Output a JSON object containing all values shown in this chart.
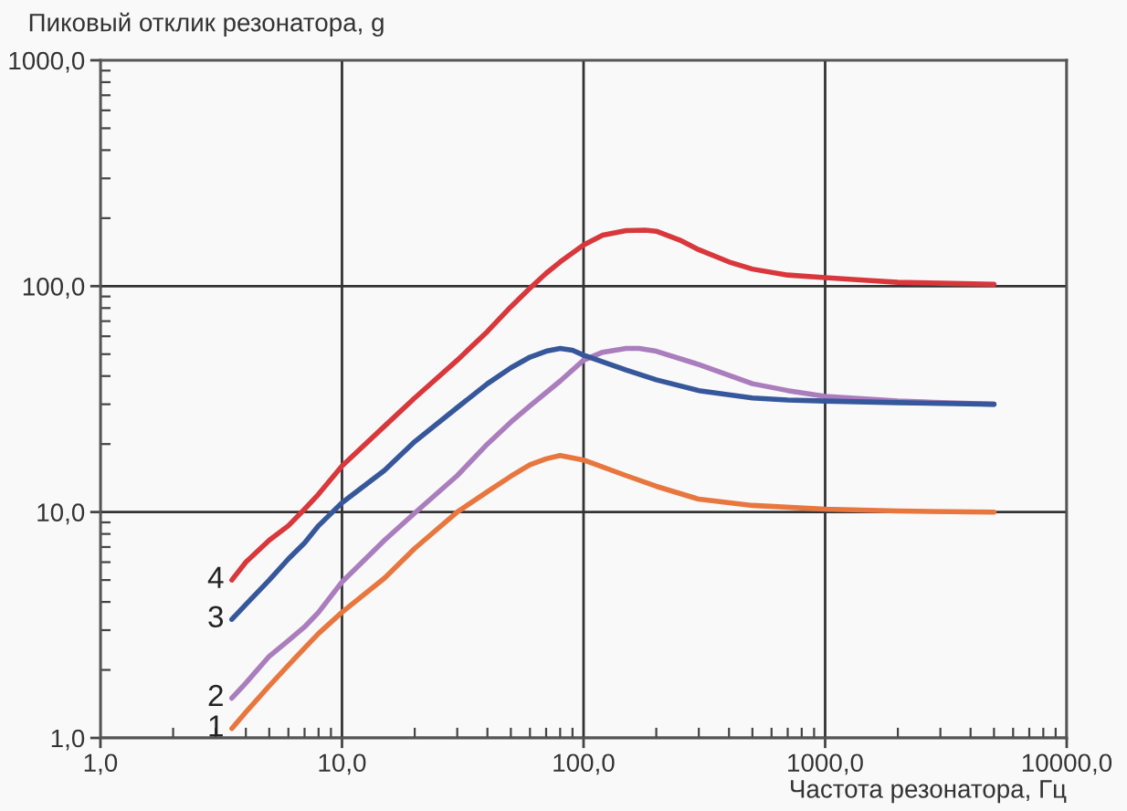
{
  "chart_data": {
    "type": "line",
    "xlabel": "Частота резонатора, Гц",
    "ylabel": "Пиковый отклик резонатора, g",
    "log": "xy",
    "xlim": [
      1,
      10000
    ],
    "ylim": [
      1,
      1000
    ],
    "xticks": [
      {
        "value": 1,
        "label": "1,0"
      },
      {
        "value": 10,
        "label": "10,0"
      },
      {
        "value": 100,
        "label": "100,0"
      },
      {
        "value": 1000,
        "label": "1000,0"
      },
      {
        "value": 10000,
        "label": "10000,0"
      }
    ],
    "yticks": [
      {
        "value": 1,
        "label": "1,0"
      },
      {
        "value": 10,
        "label": "10,0"
      },
      {
        "value": 100,
        "label": "100,0"
      },
      {
        "value": 1000,
        "label": "1000,0"
      }
    ],
    "grid": true,
    "series": [
      {
        "name": "1",
        "color": "#e8773f",
        "x": [
          3.5,
          4,
          5,
          6,
          7,
          8,
          10,
          15,
          20,
          30,
          40,
          50,
          60,
          70,
          80,
          100,
          150,
          200,
          300,
          500,
          1000,
          2000,
          5000
        ],
        "values": [
          1.1,
          1.3,
          1.7,
          2.1,
          2.5,
          2.9,
          3.6,
          5.1,
          6.9,
          10,
          12.3,
          14.4,
          16.2,
          17.2,
          17.8,
          17,
          14.5,
          13,
          11.4,
          10.7,
          10.3,
          10.1,
          10
        ]
      },
      {
        "name": "2",
        "color": "#aa7dbd",
        "x": [
          3.5,
          4,
          5,
          6,
          7,
          8,
          10,
          15,
          20,
          30,
          40,
          50,
          60,
          80,
          100,
          120,
          150,
          170,
          200,
          300,
          500,
          700,
          1000,
          2000,
          5000
        ],
        "values": [
          1.5,
          1.75,
          2.3,
          2.7,
          3.1,
          3.6,
          4.9,
          7.5,
          9.9,
          14.5,
          20,
          25,
          29.5,
          38,
          47,
          51,
          53,
          53,
          51.5,
          45,
          37,
          34.5,
          32.5,
          31,
          30
        ]
      },
      {
        "name": "3",
        "color": "#36589b",
        "x": [
          3.5,
          4,
          5,
          6,
          7,
          8,
          10,
          15,
          20,
          30,
          40,
          50,
          60,
          70,
          80,
          90,
          100,
          150,
          200,
          300,
          500,
          700,
          1000,
          2000,
          5000
        ],
        "values": [
          3.35,
          3.9,
          5,
          6.2,
          7.3,
          8.7,
          11,
          15.3,
          20.5,
          29,
          37,
          43.5,
          48.5,
          51.5,
          53,
          52,
          49.5,
          42.5,
          38.5,
          34.5,
          32,
          31.3,
          31,
          30.5,
          30
        ]
      },
      {
        "name": "4",
        "color": "#d8383c",
        "x": [
          3.5,
          4,
          5,
          6,
          7,
          8,
          10,
          15,
          20,
          30,
          40,
          50,
          60,
          70,
          80,
          100,
          120,
          150,
          180,
          200,
          250,
          300,
          400,
          500,
          700,
          1000,
          1500,
          2000,
          3000,
          5000
        ],
        "values": [
          5,
          6,
          7.5,
          8.7,
          10.3,
          12,
          16,
          24,
          32,
          47,
          63,
          81,
          98,
          114,
          128,
          152,
          168,
          176,
          177,
          175,
          160,
          145,
          128,
          119,
          112,
          109,
          106,
          104,
          103,
          102
        ]
      }
    ]
  }
}
